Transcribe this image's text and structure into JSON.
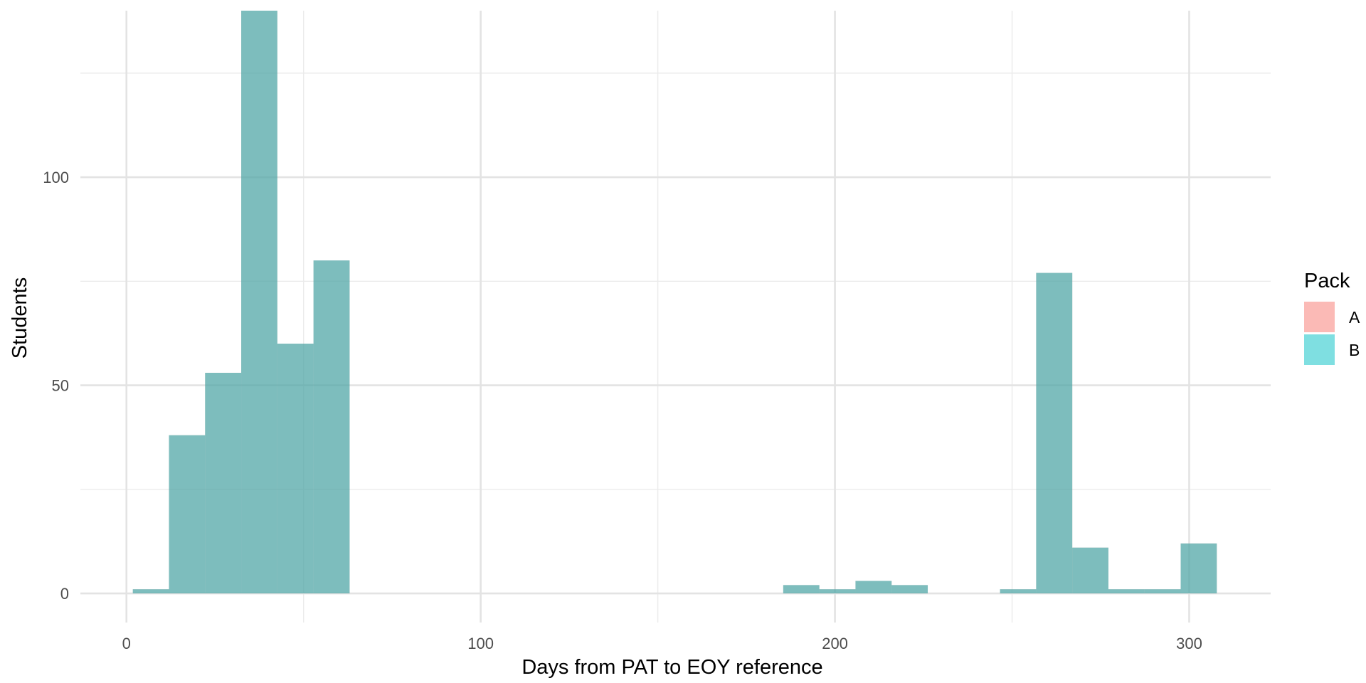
{
  "chart_data": {
    "type": "bar",
    "subtype": "histogram",
    "title": "",
    "xlabel": "Days from PAT to EOY reference",
    "ylabel": "Students",
    "xlim": [
      -13,
      323
    ],
    "ylim": [
      -7,
      140
    ],
    "x_ticks": [
      0,
      100,
      200,
      300
    ],
    "y_ticks": [
      0,
      50,
      100
    ],
    "grid": true,
    "bin_width": 10.2,
    "legend": {
      "title": "Pack",
      "position": "right",
      "entries": [
        {
          "label": "A",
          "color": "#F8766D"
        },
        {
          "label": "B",
          "color": "#00BFC4"
        }
      ]
    },
    "bar_color": "#5F9EA0",
    "series": [
      {
        "name": "A",
        "color": "#F8766D",
        "bins": [
          {
            "x0": 1.8,
            "x1": 12.0,
            "count": 1
          },
          {
            "x0": 12.0,
            "x1": 22.2,
            "count": 38
          },
          {
            "x0": 22.2,
            "x1": 32.4,
            "count": 53
          },
          {
            "x0": 32.4,
            "x1": 42.6,
            "count": 140
          },
          {
            "x0": 42.6,
            "x1": 52.8,
            "count": 60
          },
          {
            "x0": 52.8,
            "x1": 63.0,
            "count": 80
          },
          {
            "x0": 185.4,
            "x1": 195.6,
            "count": 2
          },
          {
            "x0": 195.6,
            "x1": 205.8,
            "count": 1
          },
          {
            "x0": 205.8,
            "x1": 216.0,
            "count": 3
          },
          {
            "x0": 216.0,
            "x1": 226.2,
            "count": 2
          },
          {
            "x0": 246.6,
            "x1": 256.8,
            "count": 1
          },
          {
            "x0": 256.8,
            "x1": 267.0,
            "count": 77
          },
          {
            "x0": 267.0,
            "x1": 277.2,
            "count": 11
          },
          {
            "x0": 277.2,
            "x1": 287.4,
            "count": 1
          },
          {
            "x0": 287.4,
            "x1": 297.6,
            "count": 1
          },
          {
            "x0": 297.6,
            "x1": 307.8,
            "count": 12
          }
        ]
      },
      {
        "name": "B",
        "color": "#00BFC4",
        "bins": [
          {
            "x0": 1.8,
            "x1": 12.0,
            "count": 1
          },
          {
            "x0": 12.0,
            "x1": 22.2,
            "count": 38
          },
          {
            "x0": 22.2,
            "x1": 32.4,
            "count": 53
          },
          {
            "x0": 32.4,
            "x1": 42.6,
            "count": 140
          },
          {
            "x0": 42.6,
            "x1": 52.8,
            "count": 60
          },
          {
            "x0": 52.8,
            "x1": 63.0,
            "count": 80
          },
          {
            "x0": 185.4,
            "x1": 195.6,
            "count": 2
          },
          {
            "x0": 195.6,
            "x1": 205.8,
            "count": 1
          },
          {
            "x0": 205.8,
            "x1": 216.0,
            "count": 3
          },
          {
            "x0": 216.0,
            "x1": 226.2,
            "count": 2
          },
          {
            "x0": 246.6,
            "x1": 256.8,
            "count": 1
          },
          {
            "x0": 256.8,
            "x1": 267.0,
            "count": 77
          },
          {
            "x0": 267.0,
            "x1": 277.2,
            "count": 11
          },
          {
            "x0": 277.2,
            "x1": 287.4,
            "count": 1
          },
          {
            "x0": 287.4,
            "x1": 297.6,
            "count": 1
          },
          {
            "x0": 297.6,
            "x1": 307.8,
            "count": 12
          }
        ]
      }
    ]
  }
}
